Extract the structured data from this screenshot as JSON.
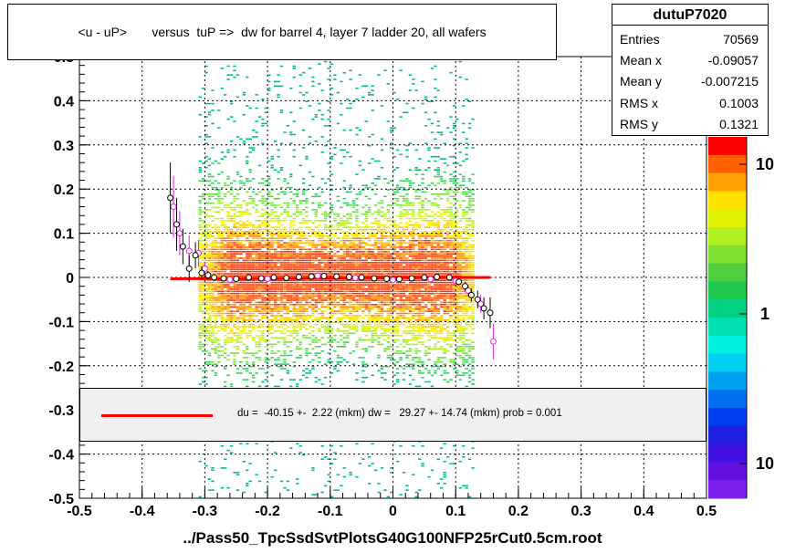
{
  "title": "<u - uP>       versus  tuP =>  dw for barrel 4, layer 7 ladder 20, all wafers",
  "x_axis_title": "../Pass50_TpcSsdSvtPlotsG40G100NFP25rCut0.5cm.root",
  "stats": {
    "name": "dutuP7020",
    "rows": [
      {
        "label": "Entries",
        "value": "70569"
      },
      {
        "label": "Mean x",
        "value": "-0.09057"
      },
      {
        "label": "Mean y",
        "value": "-0.007215"
      },
      {
        "label": "RMS x",
        "value": "0.1003"
      },
      {
        "label": "RMS y",
        "value": "0.1321"
      }
    ]
  },
  "fit_legend": {
    "text": "du =  -40.15 +-  2.22 (mkm) dw =   29.27 +- 14.74 (mkm) prob = 0.001",
    "color": "#ff0000"
  },
  "chart_data": {
    "type": "heatmap",
    "title": "<u - uP>       versus  tuP =>  dw for barrel 4, layer 7 ladder 20, all wafers",
    "xlabel": "../Pass50_TpcSsdSvtPlotsG40G100NFP25rCut0.5cm.root",
    "ylabel": "",
    "xlim": [
      -0.5,
      0.5
    ],
    "ylim": [
      -0.5,
      0.5
    ],
    "x_ticks": [
      "-0.5",
      "-0.4",
      "-0.3",
      "-0.2",
      "-0.1",
      "0",
      "0.1",
      "0.2",
      "0.3",
      "0.4",
      "0.5"
    ],
    "y_ticks": [
      "-0.5",
      "-0.4",
      "-0.3",
      "-0.2",
      "-0.1",
      "0",
      "0.1",
      "0.2",
      "0.3",
      "0.4",
      "0.5"
    ],
    "grid": true,
    "occupied_x_range": [
      -0.31,
      0.13
    ],
    "palette_labels": [
      "10",
      "1",
      "10"
    ],
    "profile_points_black": [
      {
        "x": -0.355,
        "y": 0.18,
        "err": 0.08
      },
      {
        "x": -0.345,
        "y": 0.12,
        "err": 0.06
      },
      {
        "x": -0.335,
        "y": 0.07,
        "err": 0.04
      },
      {
        "x": -0.325,
        "y": 0.02,
        "err": 0.03
      },
      {
        "x": -0.315,
        "y": 0.05,
        "err": 0.03
      },
      {
        "x": -0.305,
        "y": 0.01,
        "err": 0.015
      },
      {
        "x": -0.295,
        "y": 0.005,
        "err": 0.01
      },
      {
        "x": -0.285,
        "y": 0.0,
        "err": 0.008
      },
      {
        "x": -0.27,
        "y": -0.002,
        "err": 0.006
      },
      {
        "x": -0.25,
        "y": -0.003,
        "err": 0.005
      },
      {
        "x": -0.23,
        "y": 0.0,
        "err": 0.004
      },
      {
        "x": -0.21,
        "y": -0.002,
        "err": 0.004
      },
      {
        "x": -0.19,
        "y": 0.0,
        "err": 0.003
      },
      {
        "x": -0.17,
        "y": -0.001,
        "err": 0.003
      },
      {
        "x": -0.15,
        "y": 0.001,
        "err": 0.003
      },
      {
        "x": -0.13,
        "y": 0.002,
        "err": 0.003
      },
      {
        "x": -0.11,
        "y": 0.003,
        "err": 0.003
      },
      {
        "x": -0.09,
        "y": 0.002,
        "err": 0.003
      },
      {
        "x": -0.07,
        "y": 0.001,
        "err": 0.003
      },
      {
        "x": -0.05,
        "y": 0.0,
        "err": 0.003
      },
      {
        "x": -0.03,
        "y": -0.002,
        "err": 0.003
      },
      {
        "x": -0.01,
        "y": -0.003,
        "err": 0.003
      },
      {
        "x": 0.01,
        "y": -0.004,
        "err": 0.004
      },
      {
        "x": 0.03,
        "y": -0.002,
        "err": 0.004
      },
      {
        "x": 0.05,
        "y": 0.0,
        "err": 0.004
      },
      {
        "x": 0.07,
        "y": 0.001,
        "err": 0.005
      },
      {
        "x": 0.09,
        "y": 0.0,
        "err": 0.006
      },
      {
        "x": 0.105,
        "y": -0.01,
        "err": 0.008
      },
      {
        "x": 0.115,
        "y": -0.02,
        "err": 0.01
      },
      {
        "x": 0.125,
        "y": -0.04,
        "err": 0.015
      },
      {
        "x": 0.135,
        "y": -0.05,
        "err": 0.02
      },
      {
        "x": 0.145,
        "y": -0.07,
        "err": 0.025
      },
      {
        "x": 0.155,
        "y": -0.08,
        "err": 0.035
      }
    ],
    "profile_points_magenta": [
      {
        "x": -0.35,
        "y": 0.16,
        "err": 0.07
      },
      {
        "x": -0.34,
        "y": 0.1,
        "err": 0.05
      },
      {
        "x": -0.325,
        "y": 0.06,
        "err": 0.035
      },
      {
        "x": -0.31,
        "y": 0.055,
        "err": 0.03
      },
      {
        "x": -0.3,
        "y": 0.02,
        "err": 0.015
      },
      {
        "x": -0.26,
        "y": -0.005,
        "err": 0.006
      },
      {
        "x": -0.2,
        "y": -0.003,
        "err": 0.004
      },
      {
        "x": -0.12,
        "y": 0.004,
        "err": 0.003
      },
      {
        "x": -0.06,
        "y": -0.001,
        "err": 0.003
      },
      {
        "x": 0.0,
        "y": -0.006,
        "err": 0.004
      },
      {
        "x": 0.06,
        "y": -0.004,
        "err": 0.004
      },
      {
        "x": 0.1,
        "y": -0.008,
        "err": 0.007
      },
      {
        "x": 0.12,
        "y": -0.03,
        "err": 0.012
      },
      {
        "x": 0.14,
        "y": -0.06,
        "err": 0.02
      },
      {
        "x": 0.16,
        "y": -0.145,
        "err": 0.04
      }
    ],
    "fit_line": {
      "x": [
        -0.355,
        0.155
      ],
      "y": [
        -0.003,
        0.0
      ],
      "color": "#ff0000"
    }
  }
}
